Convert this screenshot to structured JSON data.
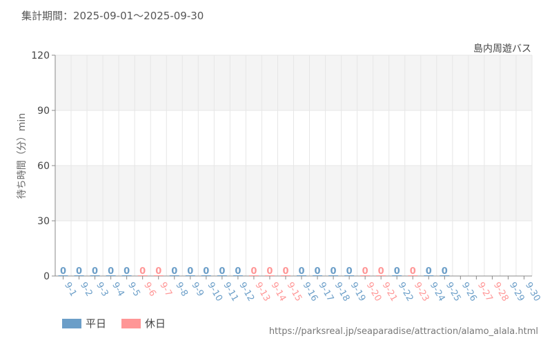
{
  "header": {
    "period": "集計期間：2025-09-01～2025-09-30"
  },
  "source_url": "https://parksreal.jp/seaparadise/attraction/alamo_alala.html",
  "colors": {
    "weekday": "#6b9ec8",
    "holiday": "#ff9696",
    "grid": "#e6e6e6",
    "band": "#f4f4f4",
    "axis": "#888888",
    "text": "#555555"
  },
  "chart_data": {
    "type": "bar",
    "subtitle": "島内周遊バス",
    "ylabel": "待ち時間（分）min",
    "ylim": [
      0,
      120
    ],
    "yticks": [
      0,
      30,
      60,
      90,
      120
    ],
    "grid": true,
    "legend_position": "bottom-left",
    "legend": [
      {
        "key": "weekday",
        "label": "平日"
      },
      {
        "key": "holiday",
        "label": "休日"
      }
    ],
    "categories": [
      "9-1",
      "9-2",
      "9-3",
      "9-4",
      "9-5",
      "9-6",
      "9-7",
      "9-8",
      "9-9",
      "9-10",
      "9-11",
      "9-12",
      "9-13",
      "9-14",
      "9-15",
      "9-16",
      "9-17",
      "9-18",
      "9-19",
      "9-20",
      "9-21",
      "9-22",
      "9-23",
      "9-24",
      "9-25",
      "9-26",
      "9-27",
      "9-28",
      "9-29",
      "9-30"
    ],
    "day_type": [
      "weekday",
      "weekday",
      "weekday",
      "weekday",
      "weekday",
      "holiday",
      "holiday",
      "weekday",
      "weekday",
      "weekday",
      "weekday",
      "weekday",
      "holiday",
      "holiday",
      "holiday",
      "weekday",
      "weekday",
      "weekday",
      "weekday",
      "holiday",
      "holiday",
      "weekday",
      "holiday",
      "weekday",
      "weekday",
      "weekday",
      "holiday",
      "holiday",
      "weekday",
      "weekday"
    ],
    "values": [
      0,
      0,
      0,
      0,
      0,
      0,
      0,
      0,
      0,
      0,
      0,
      0,
      0,
      0,
      0,
      0,
      0,
      0,
      0,
      0,
      0,
      0,
      0,
      0,
      0,
      null,
      null,
      null,
      null,
      null
    ],
    "data_labels": [
      "0",
      "0",
      "0",
      "0",
      "0",
      "0",
      "0",
      "0",
      "0",
      "0",
      "0",
      "0",
      "0",
      "0",
      "0",
      "0",
      "0",
      "0",
      "0",
      "0",
      "0",
      "0",
      "0",
      "0",
      "0",
      "",
      "",
      "",
      "",
      ""
    ]
  }
}
